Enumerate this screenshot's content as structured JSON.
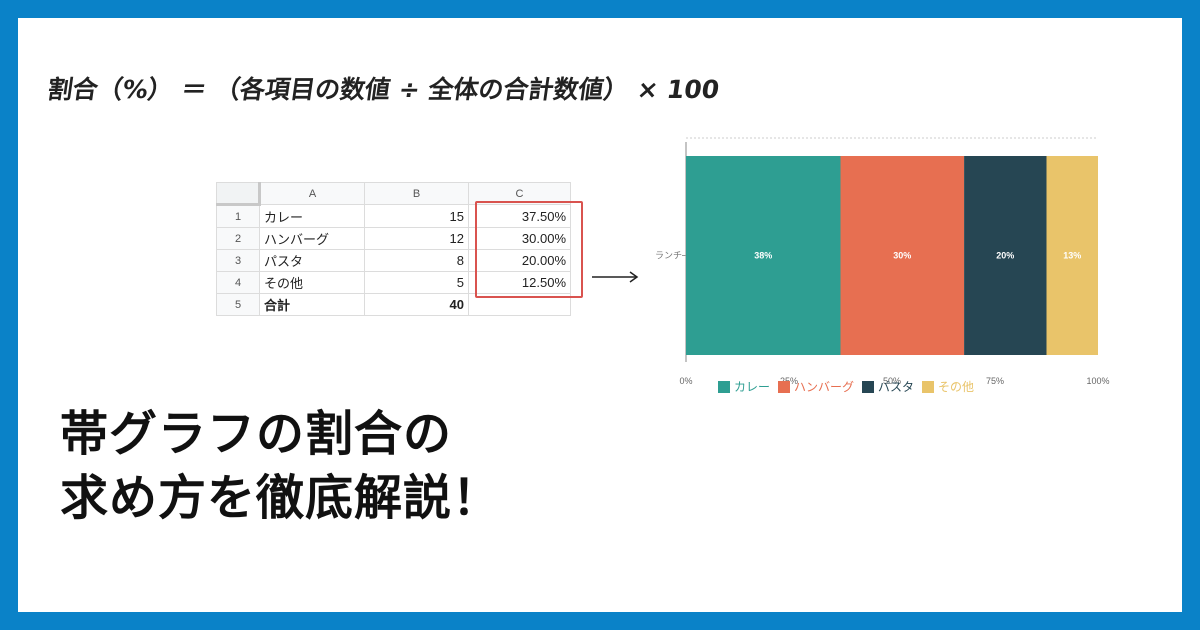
{
  "formula": "割合（%） ＝ （各項目の数値 ÷ 全体の合計数値） × 100",
  "spreadsheet": {
    "columns": [
      "A",
      "B",
      "C"
    ],
    "rows": [
      {
        "num": "1",
        "a": "カレー",
        "b": "15",
        "c": "37.50%"
      },
      {
        "num": "2",
        "a": "ハンバーグ",
        "b": "12",
        "c": "30.00%"
      },
      {
        "num": "3",
        "a": "パスタ",
        "b": "8",
        "c": "20.00%"
      },
      {
        "num": "4",
        "a": "その他",
        "b": "5",
        "c": "12.50%"
      },
      {
        "num": "5",
        "a": "合計",
        "b": "40",
        "c": ""
      }
    ]
  },
  "chart_data": {
    "type": "bar",
    "orientation": "horizontal",
    "stacked": "percent",
    "categories": [
      "ランチ"
    ],
    "series": [
      {
        "name": "カレー",
        "values": [
          37.5
        ],
        "label": "38%",
        "color": "#2e9e92"
      },
      {
        "name": "ハンバーグ",
        "values": [
          30
        ],
        "label": "30%",
        "color": "#e76f51"
      },
      {
        "name": "パスタ",
        "values": [
          20
        ],
        "label": "20%",
        "color": "#264653"
      },
      {
        "name": "その他",
        "values": [
          12.5
        ],
        "label": "13%",
        "color": "#e9c46a"
      }
    ],
    "xticks": [
      "0%",
      "25%",
      "50%",
      "75%",
      "100%"
    ],
    "xlim": [
      0,
      100
    ],
    "legend": "bottom",
    "grid": true
  },
  "headline": {
    "line1": "帯グラフの割合の",
    "line2": "求め方を徹底解説！"
  },
  "colors": {
    "frame": "#0a82c8",
    "highlight": "#d9534f"
  }
}
